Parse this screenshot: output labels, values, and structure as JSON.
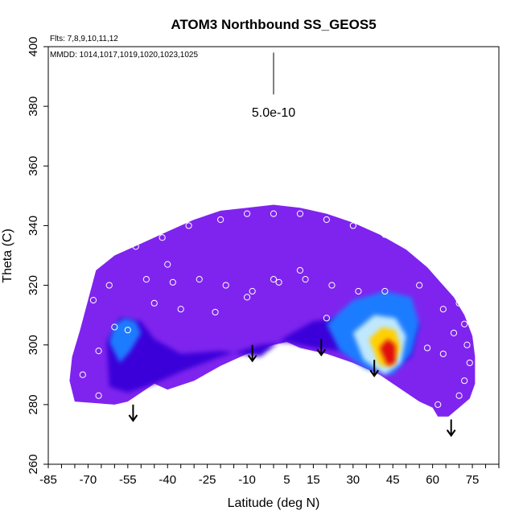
{
  "chart_data": {
    "type": "heatmap",
    "title": "ATOM3 Northbound SS_GEOS5",
    "subtitle_flights": "Flts: 7,8,9,10,11,12",
    "subtitle_dates": "MMDD: 1014,1017,1019,1020,1023,1025",
    "xlabel": "Latitude (deg N)",
    "ylabel": "Theta (C)",
    "xlim": [
      -85,
      85
    ],
    "ylim": [
      260,
      400
    ],
    "x_ticks": [
      -85,
      -70,
      -55,
      -40,
      -25,
      -10,
      5,
      15,
      30,
      45,
      60,
      75
    ],
    "y_ticks": [
      260,
      280,
      300,
      320,
      340,
      360,
      380,
      400
    ],
    "scale_label": "5.0e-10",
    "colors": {
      "background_field": "#7f24ee",
      "low": "#3a00d9",
      "mid": "#1e7cff",
      "light": "#bfe8ff",
      "high": "#ffd000",
      "peak": "#e01010"
    },
    "grid": false,
    "legend": "none",
    "envelope": {
      "upper": [
        [
          -75,
          281
        ],
        [
          -77,
          288
        ],
        [
          -76,
          296
        ],
        [
          -73,
          305
        ],
        [
          -70,
          315
        ],
        [
          -67,
          325
        ],
        [
          -60,
          330
        ],
        [
          -50,
          334
        ],
        [
          -40,
          338
        ],
        [
          -30,
          342
        ],
        [
          -20,
          345
        ],
        [
          -10,
          346
        ],
        [
          0,
          347
        ],
        [
          10,
          346
        ],
        [
          20,
          344
        ],
        [
          30,
          341
        ],
        [
          40,
          337
        ],
        [
          50,
          332
        ],
        [
          58,
          326
        ],
        [
          63,
          321
        ],
        [
          68,
          316
        ],
        [
          72,
          310
        ],
        [
          75,
          303
        ],
        [
          76,
          296
        ],
        [
          76,
          287
        ],
        [
          74,
          282
        ]
      ],
      "lower": [
        [
          74,
          282
        ],
        [
          70,
          279
        ],
        [
          66,
          276
        ],
        [
          62,
          276
        ],
        [
          60,
          279
        ],
        [
          55,
          281
        ],
        [
          50,
          284
        ],
        [
          45,
          287
        ],
        [
          40,
          290
        ],
        [
          30,
          294
        ],
        [
          20,
          297
        ],
        [
          10,
          299
        ],
        [
          5,
          301
        ],
        [
          0,
          300
        ],
        [
          -10,
          297
        ],
        [
          -20,
          293
        ],
        [
          -30,
          288
        ],
        [
          -40,
          285
        ],
        [
          -45,
          287
        ],
        [
          -55,
          281
        ],
        [
          -60,
          280
        ],
        [
          -75,
          281
        ]
      ]
    },
    "dark_band": [
      [
        -5,
        296
      ],
      [
        5,
        303
      ],
      [
        15,
        308
      ],
      [
        25,
        309
      ],
      [
        35,
        310
      ],
      [
        45,
        311
      ],
      [
        55,
        307
      ],
      [
        52,
        296
      ],
      [
        45,
        292
      ],
      [
        35,
        296
      ],
      [
        25,
        298
      ],
      [
        15,
        299
      ],
      [
        5,
        301
      ],
      [
        -5,
        300
      ],
      [
        -20,
        296
      ],
      [
        -35,
        291
      ],
      [
        -45,
        287
      ],
      [
        -55,
        284
      ],
      [
        -62,
        286
      ],
      [
        -63,
        301
      ],
      [
        -58,
        309
      ],
      [
        -50,
        308
      ],
      [
        -45,
        302
      ],
      [
        -35,
        297
      ],
      [
        -20,
        298
      ]
    ],
    "blob_a": [
      [
        -62,
        301
      ],
      [
        -60,
        307
      ],
      [
        -56,
        309
      ],
      [
        -52,
        308
      ],
      [
        -50,
        304
      ],
      [
        -54,
        298
      ],
      [
        -58,
        294
      ]
    ],
    "blob_b": [
      [
        20,
        307
      ],
      [
        30,
        315
      ],
      [
        42,
        318
      ],
      [
        52,
        316
      ],
      [
        55,
        307
      ],
      [
        52,
        297
      ],
      [
        45,
        290
      ],
      [
        35,
        292
      ],
      [
        25,
        298
      ]
    ],
    "blob_c": [
      [
        30,
        304
      ],
      [
        38,
        310
      ],
      [
        46,
        309
      ],
      [
        50,
        303
      ],
      [
        48,
        294
      ],
      [
        42,
        290
      ],
      [
        34,
        295
      ]
    ],
    "blob_d": [
      [
        36,
        302
      ],
      [
        41,
        306
      ],
      [
        46,
        305
      ],
      [
        48,
        299
      ],
      [
        45,
        293
      ],
      [
        40,
        293
      ]
    ],
    "blob_e": [
      [
        40,
        299
      ],
      [
        43,
        302
      ],
      [
        46,
        300
      ],
      [
        46,
        294
      ],
      [
        43,
        293
      ]
    ],
    "points": [
      [
        -70,
        323
      ],
      [
        -62,
        330
      ],
      [
        -52,
        333
      ],
      [
        -42,
        336
      ],
      [
        -32,
        340
      ],
      [
        -20,
        342
      ],
      [
        -10,
        344
      ],
      [
        0,
        344
      ],
      [
        10,
        344
      ],
      [
        20,
        342
      ],
      [
        30,
        340
      ],
      [
        42,
        337
      ],
      [
        52,
        332
      ],
      [
        60,
        326
      ],
      [
        66,
        320
      ],
      [
        70,
        314
      ],
      [
        72,
        307
      ],
      [
        73,
        300
      ],
      [
        74,
        294
      ],
      [
        72,
        288
      ],
      [
        70,
        283
      ],
      [
        62,
        280
      ],
      [
        -68,
        315
      ],
      [
        -62,
        320
      ],
      [
        -48,
        322
      ],
      [
        -38,
        321
      ],
      [
        -28,
        322
      ],
      [
        -18,
        320
      ],
      [
        -8,
        318
      ],
      [
        2,
        321
      ],
      [
        12,
        322
      ],
      [
        22,
        320
      ],
      [
        32,
        318
      ],
      [
        42,
        318
      ],
      [
        55,
        320
      ],
      [
        64,
        312
      ],
      [
        68,
        304
      ],
      [
        -60,
        306
      ],
      [
        -45,
        314
      ],
      [
        -35,
        312
      ],
      [
        -22,
        311
      ],
      [
        -10,
        316
      ],
      [
        0,
        322
      ],
      [
        10,
        325
      ],
      [
        -66,
        298
      ],
      [
        -66,
        283
      ],
      [
        -72,
        290
      ],
      [
        20,
        309
      ],
      [
        -55,
        305
      ],
      [
        58,
        299
      ],
      [
        64,
        297
      ],
      [
        -40,
        327
      ]
    ],
    "arrows": [
      [
        -53,
        280
      ],
      [
        -8,
        300
      ],
      [
        18,
        302
      ],
      [
        38,
        295
      ],
      [
        67,
        275
      ]
    ]
  }
}
